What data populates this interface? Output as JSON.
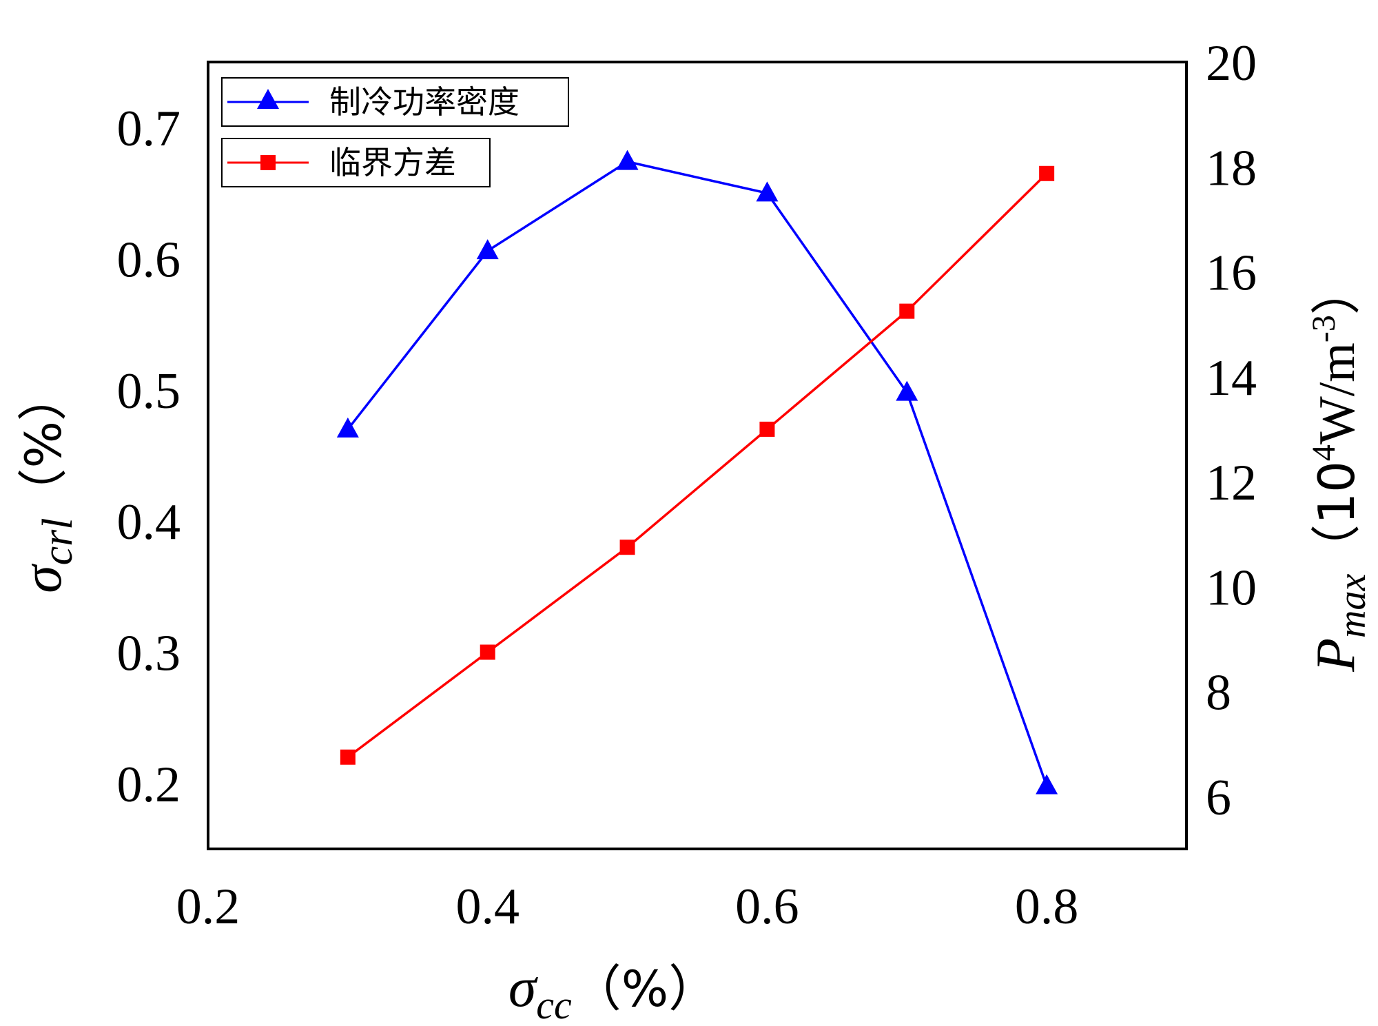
{
  "chart_data": {
    "type": "line",
    "x": [
      0.3,
      0.4,
      0.5,
      0.6,
      0.7,
      0.8
    ],
    "xticks": [
      "0.2",
      "0.4",
      "0.6",
      "0.8"
    ],
    "xlim": [
      0.2,
      0.9
    ],
    "xlabel": {
      "symbol": "σ",
      "sub": "cc",
      "unit": "（%）"
    },
    "ylim_left": [
      0.15,
      0.75
    ],
    "yticks_left": [
      "0.2",
      "0.3",
      "0.4",
      "0.5",
      "0.6",
      "0.7"
    ],
    "ylabel_left": {
      "symbol": "σ",
      "sub": "crl",
      "unit": "（%）"
    },
    "ylim_right": [
      5,
      20
    ],
    "yticks_right": [
      "6",
      "8",
      "10",
      "12",
      "14",
      "16",
      "18",
      "20"
    ],
    "ylabel_right": {
      "symbol": "P",
      "sub": "max",
      "unit": "（10",
      "sup": "4",
      "unit2": "W/m",
      "sup2": "-3",
      "unit3": "）"
    },
    "grid": false,
    "legend_position": "top-left",
    "series": [
      {
        "name": "制冷功率密度",
        "axis": "right",
        "marker": "triangle",
        "color": "#0000ff",
        "values": [
          13.0,
          16.4,
          18.1,
          17.5,
          13.7,
          6.2
        ]
      },
      {
        "name": "临界方差",
        "axis": "left",
        "marker": "square",
        "color": "#ff0000",
        "values": [
          0.22,
          0.3,
          0.38,
          0.47,
          0.56,
          0.665
        ]
      }
    ]
  }
}
